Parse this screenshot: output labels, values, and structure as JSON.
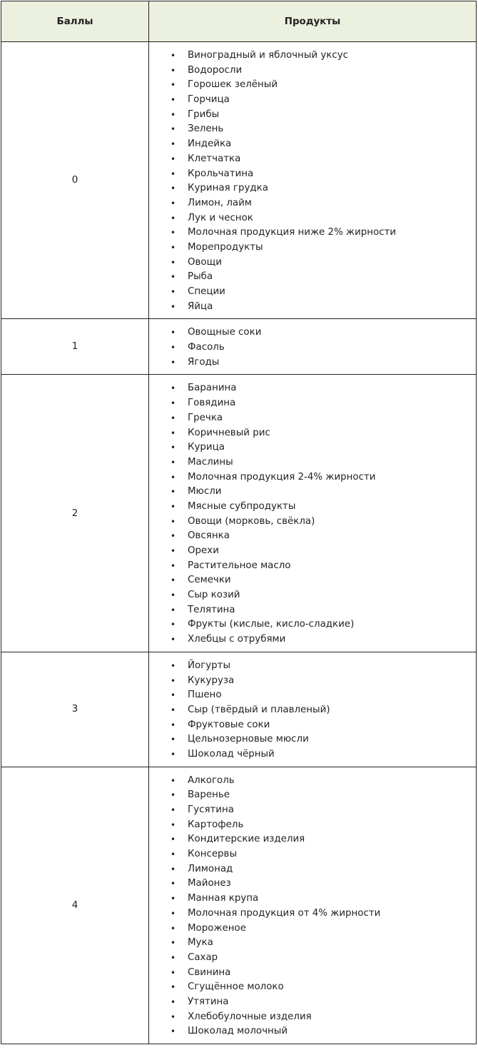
{
  "table": {
    "headers": {
      "score": "Баллы",
      "products": "Продукты"
    },
    "header_bg": "#ebf1de",
    "rows": [
      {
        "score": "0",
        "items": [
          "Виноградный и яблочный уксус",
          "Водоросли",
          "Горошек зелёный",
          "Горчица",
          "Грибы",
          "Зелень",
          "Индейка",
          "Клетчатка",
          "Крольчатина",
          "Куриная грудка",
          "Лимон, лайм",
          "Лук и чеснок",
          "Молочная продукция ниже 2% жирности",
          "Морепродукты",
          "Овощи",
          "Рыба",
          "Специи",
          "Яйца"
        ]
      },
      {
        "score": "1",
        "items": [
          "Овощные соки",
          "Фасоль",
          "Ягоды"
        ]
      },
      {
        "score": "2",
        "items": [
          "Баранина",
          "Говядина",
          "Гречка",
          "Коричневый рис",
          "Курица",
          "Маслины",
          "Молочная продукция 2-4% жирности",
          "Мюсли",
          "Мясные субпродукты",
          "Овощи (морковь, свёкла)",
          "Овсянка",
          "Орехи",
          "Растительное масло",
          "Семечки",
          "Сыр козий",
          "Телятина",
          "Фрукты (кислые, кисло-сладкие)",
          "Хлебцы с отрубями"
        ]
      },
      {
        "score": "3",
        "items": [
          "Йогурты",
          "Кукуруза",
          "Пшено",
          "Сыр (твёрдый и плавленый)",
          "Фруктовые соки",
          "Цельнозерновые мюсли",
          "Шоколад чёрный"
        ]
      },
      {
        "score": "4",
        "items": [
          "Алкоголь",
          "Варенье",
          "Гусятина",
          "Картофель",
          "Кондитерские изделия",
          "Консервы",
          "Лимонад",
          "Майонез",
          "Манная крупа",
          "Молочная продукция от 4% жирности",
          "Мороженое",
          "Мука",
          "Сахар",
          "Свинина",
          "Сгущённое молоко",
          "Утятина",
          "Хлебобулочные изделия",
          "Шоколад молочный"
        ]
      }
    ]
  }
}
